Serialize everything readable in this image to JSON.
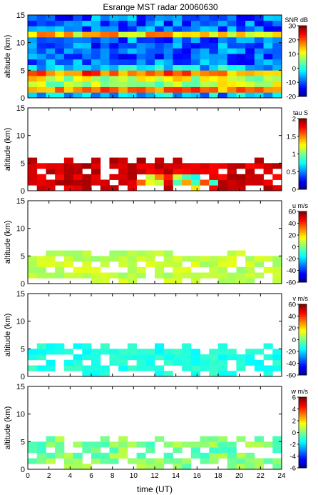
{
  "figure": {
    "title": "Esrange MST radar 20060630",
    "xlabel": "time (UT)"
  },
  "chart_data": [
    {
      "type": "heatmap",
      "ylabel": "altitude (km)",
      "colorbar_label": "SNR dB",
      "x_ticks": [
        0,
        2,
        4,
        6,
        8,
        10,
        12,
        14,
        16,
        18,
        20,
        22,
        24
      ],
      "xlim": [
        0,
        24
      ],
      "y_ticks": [
        0,
        5,
        10,
        15
      ],
      "ylim": [
        0,
        15
      ],
      "cbar_ticks": [
        -20,
        -10,
        0,
        10,
        20,
        30
      ],
      "clim": [
        -20,
        30
      ],
      "fill": "full"
    },
    {
      "type": "heatmap",
      "ylabel": "altitude (km)",
      "colorbar_label": "tau S",
      "x_ticks": [
        0,
        2,
        4,
        6,
        8,
        10,
        12,
        14,
        16,
        18,
        20,
        22,
        24
      ],
      "xlim": [
        0,
        24
      ],
      "y_ticks": [
        0,
        5,
        10,
        15
      ],
      "ylim": [
        0,
        15
      ],
      "cbar_ticks": [
        "0",
        "0.5",
        "1",
        "1.5",
        "2"
      ],
      "clim": [
        0,
        2
      ],
      "fill": "sparse"
    },
    {
      "type": "heatmap",
      "ylabel": "altitude (km)",
      "colorbar_label": "u m/s",
      "x_ticks": [
        0,
        2,
        4,
        6,
        8,
        10,
        12,
        14,
        16,
        18,
        20,
        22,
        24
      ],
      "xlim": [
        0,
        24
      ],
      "y_ticks": [
        0,
        5,
        10,
        15
      ],
      "ylim": [
        0,
        15
      ],
      "cbar_ticks": [
        -60,
        -40,
        -20,
        0,
        20,
        40,
        60
      ],
      "clim": [
        -60,
        60
      ],
      "fill": "sparse"
    },
    {
      "type": "heatmap",
      "ylabel": "altitude (km)",
      "colorbar_label": "v m/s",
      "x_ticks": [
        0,
        2,
        4,
        6,
        8,
        10,
        12,
        14,
        16,
        18,
        20,
        22,
        24
      ],
      "xlim": [
        0,
        24
      ],
      "y_ticks": [
        0,
        5,
        10,
        15
      ],
      "ylim": [
        0,
        15
      ],
      "cbar_ticks": [
        -60,
        -40,
        -20,
        0,
        20,
        40,
        60
      ],
      "clim": [
        -60,
        60
      ],
      "fill": "sparse"
    },
    {
      "type": "heatmap",
      "ylabel": "altitude (km)",
      "colorbar_label": "w m/s",
      "x_ticks": [
        0,
        2,
        4,
        6,
        8,
        10,
        12,
        14,
        16,
        18,
        20,
        22,
        24
      ],
      "xlim": [
        0,
        24
      ],
      "y_ticks": [
        0,
        5,
        10,
        15
      ],
      "ylim": [
        0,
        15
      ],
      "cbar_ticks": [
        -6,
        -4,
        -2,
        0,
        2,
        4,
        6
      ],
      "clim": [
        -6,
        6
      ],
      "fill": "sparse"
    }
  ]
}
